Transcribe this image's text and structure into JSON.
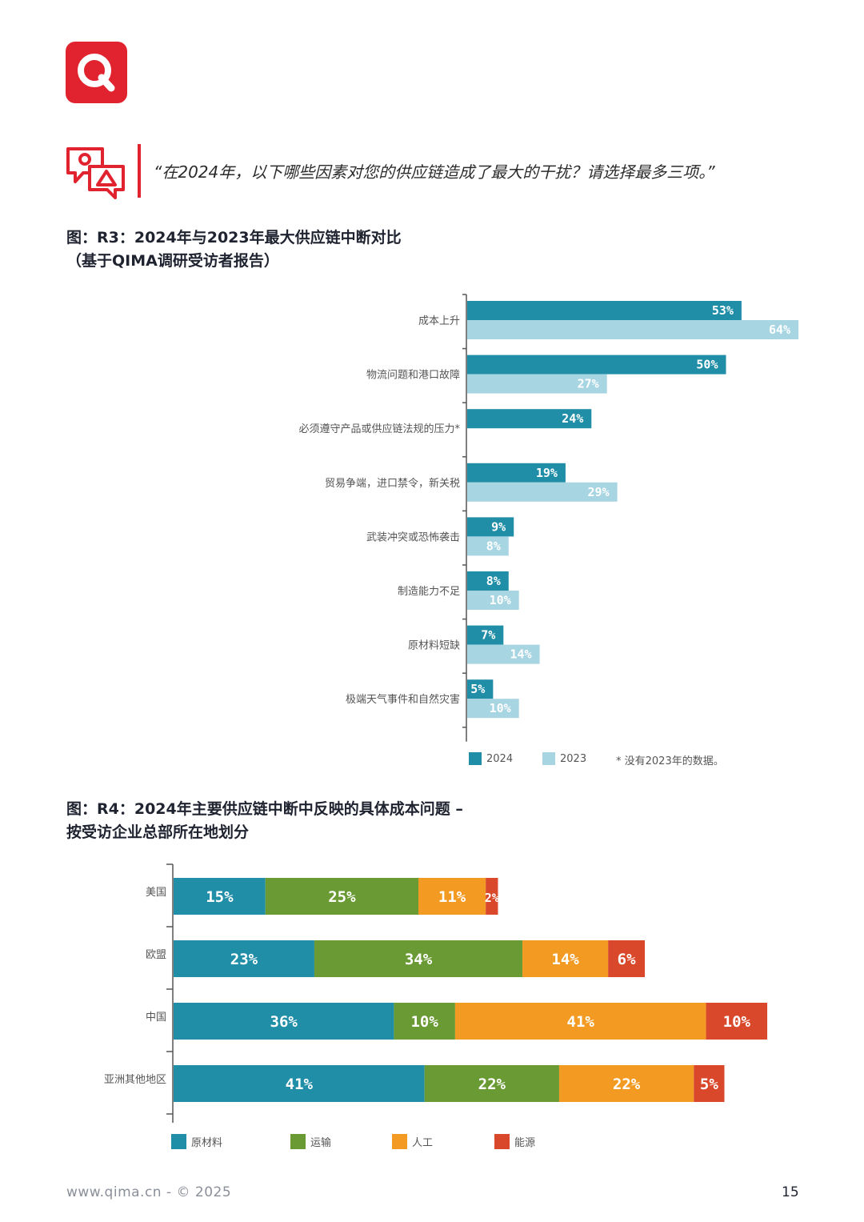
{
  "quote": "“在2024年，以下哪些因素对您的供应链造成了最大的干扰？请选择最多三项。”",
  "r3": {
    "title_line1": "图：R3：2024年与2023年最大供应链中断对比",
    "title_line2": "（基于QIMA调研受访者报告）",
    "legend": {
      "y2024": "2024",
      "y2023": "2023",
      "note": "* 没有2023年的数据。"
    }
  },
  "r4": {
    "title_line1": "图：R4：2024年主要供应链中断中反映的具体成本问题 –",
    "title_line2": "按受访企业总部所在地划分",
    "legend": {
      "raw": "原材料",
      "transport": "运输",
      "labor": "人工",
      "energy": "能源"
    }
  },
  "footer": {
    "site": "www.qima.cn - © 2025",
    "page": "15"
  },
  "colors": {
    "brand_red": "#e1232f",
    "c2024": "#218ea8",
    "c2023": "#a8d5e2",
    "raw": "#218ea8",
    "transport": "#6a9a33",
    "labor": "#f29a22",
    "energy": "#d9482a"
  },
  "chart_data": [
    {
      "type": "bar",
      "orientation": "horizontal",
      "categories": [
        "成本上升",
        "物流问题和港口故障",
        "必须遵守产品或供应链法规的压力*",
        "贸易争端，进口禁令，新关税",
        "武装冲突或恐怖袭击",
        "制造能力不足",
        "原材料短缺",
        "极端天气事件和自然灾害"
      ],
      "series": [
        {
          "name": "2024",
          "values": [
            53,
            50,
            24,
            19,
            9,
            8,
            7,
            5
          ],
          "labels": [
            "53%",
            "50%",
            "24%",
            "19%",
            "9%",
            "8%",
            "7%",
            "5%"
          ]
        },
        {
          "name": "2023",
          "values": [
            64,
            27,
            null,
            29,
            8,
            10,
            14,
            10
          ],
          "labels": [
            "64%",
            "27%",
            "",
            "29%",
            "8%",
            "10%",
            "14%",
            "10%"
          ]
        }
      ],
      "xlim": [
        0,
        64
      ]
    },
    {
      "type": "bar",
      "orientation": "horizontal",
      "stacked": true,
      "categories": [
        "美国",
        "欧盟",
        "中国",
        "亚洲其他地区"
      ],
      "series": [
        {
          "name": "原材料",
          "values": [
            15,
            23,
            36,
            41
          ],
          "labels": [
            "15%",
            "23%",
            "36%",
            "41%"
          ]
        },
        {
          "name": "运输",
          "values": [
            25,
            34,
            10,
            22
          ],
          "labels": [
            "25%",
            "34%",
            "10%",
            "22%"
          ]
        },
        {
          "name": "人工",
          "values": [
            11,
            14,
            41,
            22
          ],
          "labels": [
            "11%",
            "14%",
            "41%",
            "22%"
          ]
        },
        {
          "name": "能源",
          "values": [
            2,
            6,
            10,
            5
          ],
          "labels": [
            "2%",
            "6%",
            "10%",
            "5%"
          ]
        }
      ]
    }
  ]
}
